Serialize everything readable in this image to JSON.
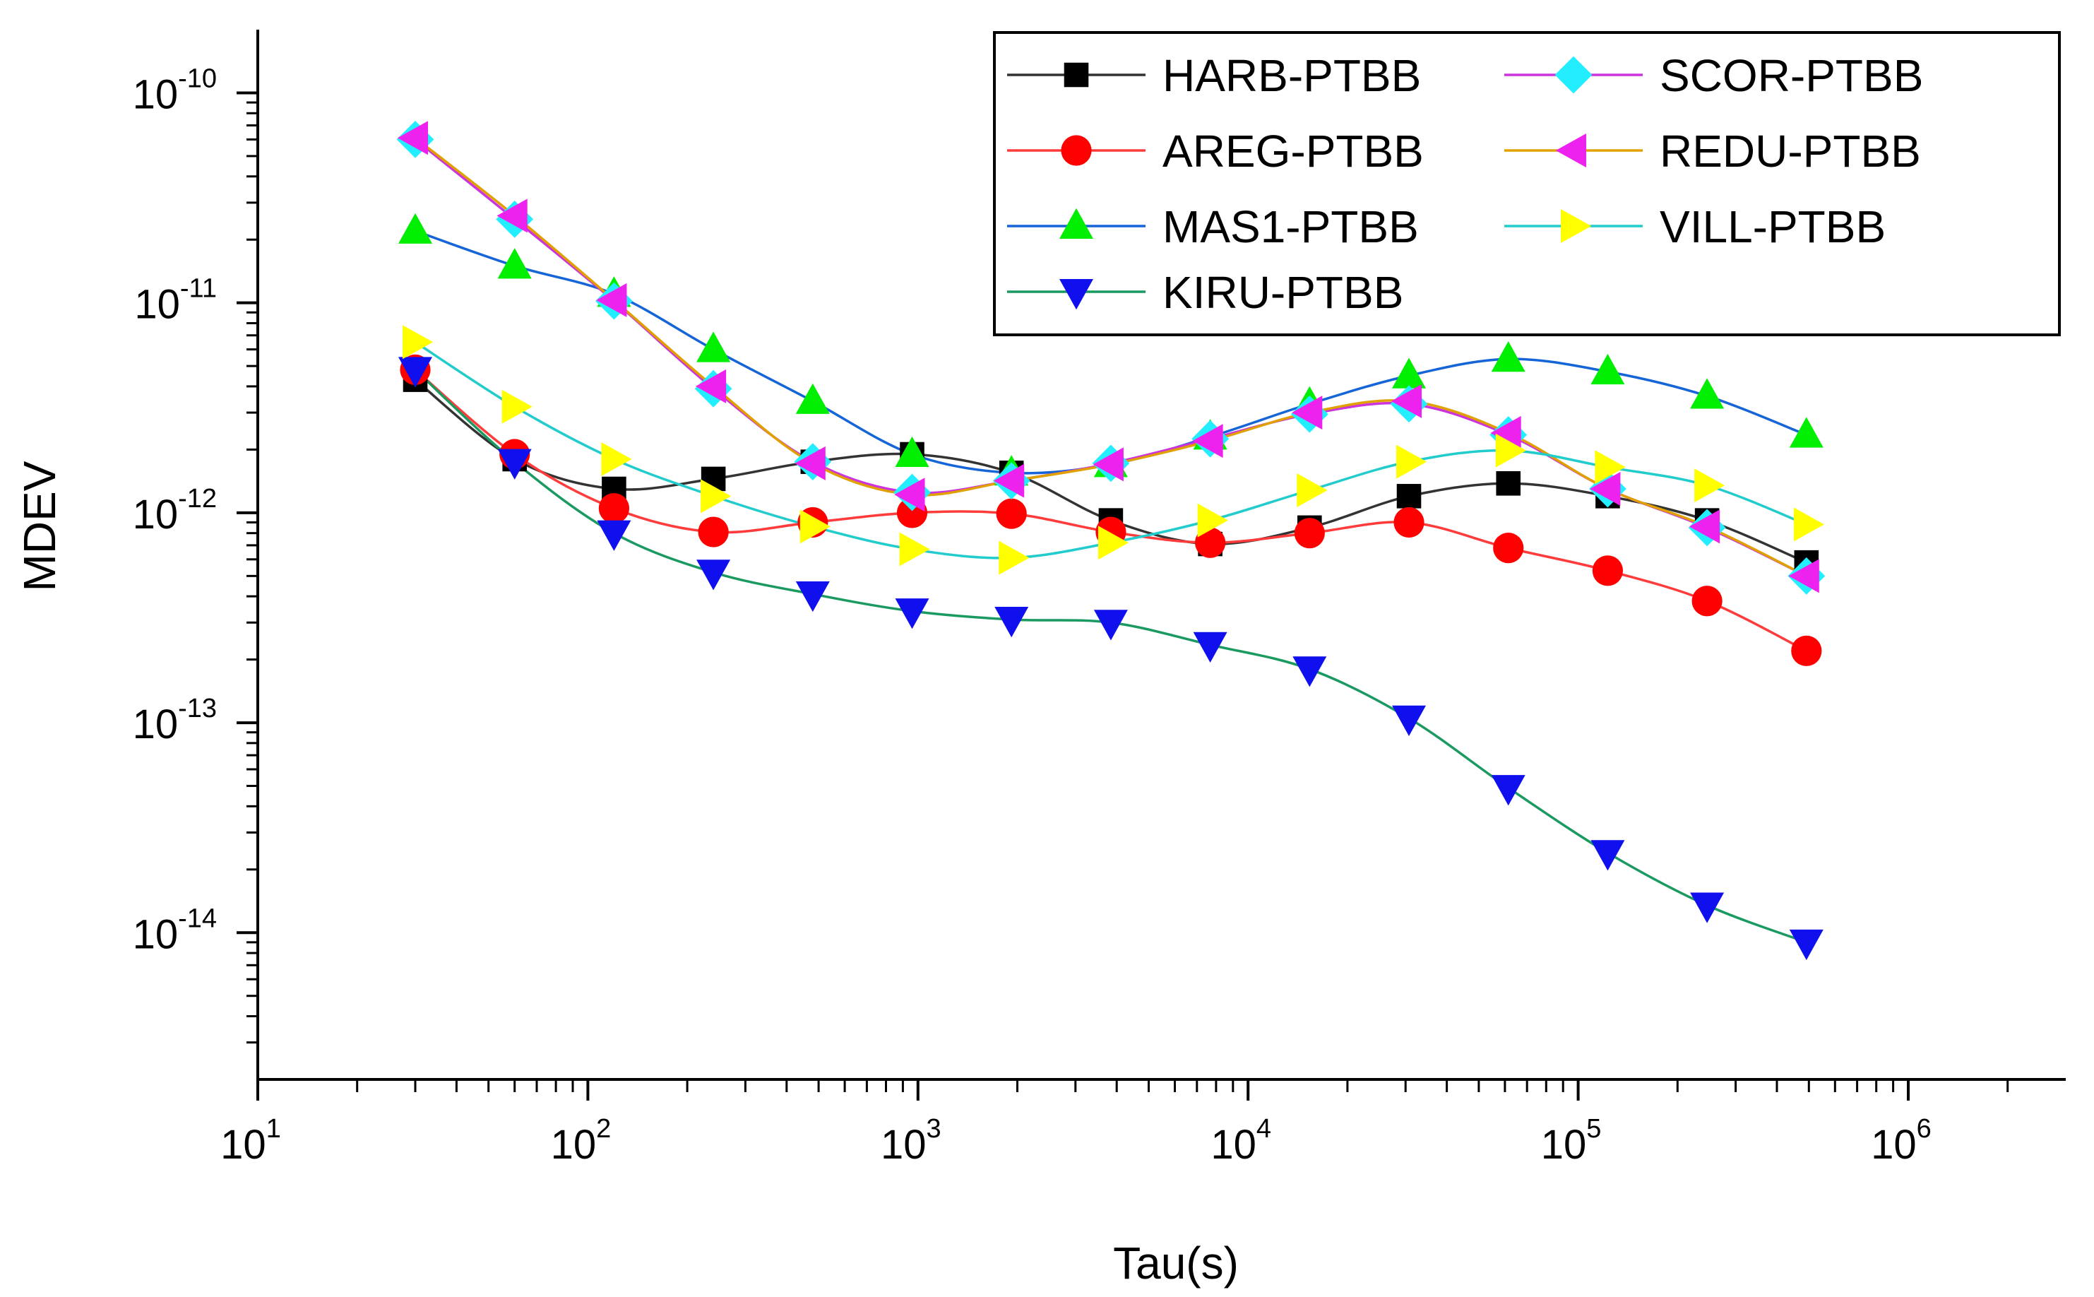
{
  "chart_data": {
    "type": "line",
    "title": "",
    "xlabel": "Tau(s)",
    "ylabel": "MDEV",
    "xscale": "log",
    "yscale": "log",
    "xlim": [
      10,
      3000000
    ],
    "ylim": [
      2e-15,
      2e-10
    ],
    "x_ticks": [
      {
        "value": 10,
        "base": "10",
        "exp": "1"
      },
      {
        "value": 100,
        "base": "10",
        "exp": "2"
      },
      {
        "value": 1000,
        "base": "10",
        "exp": "3"
      },
      {
        "value": 10000,
        "base": "10",
        "exp": "4"
      },
      {
        "value": 100000,
        "base": "10",
        "exp": "5"
      },
      {
        "value": 1000000,
        "base": "10",
        "exp": "6"
      }
    ],
    "y_ticks": [
      {
        "value": 1e-10,
        "base": "10",
        "exp": "-10"
      },
      {
        "value": 1e-11,
        "base": "10",
        "exp": "-11"
      },
      {
        "value": 1e-12,
        "base": "10",
        "exp": "-12"
      },
      {
        "value": 1e-13,
        "base": "10",
        "exp": "-13"
      },
      {
        "value": 1e-14,
        "base": "10",
        "exp": "-14"
      }
    ],
    "grid": false,
    "legend_position": "top-right",
    "x": [
      30,
      60,
      120,
      240,
      480,
      960,
      1920,
      3840,
      7680,
      15360,
      30720,
      61440,
      122880,
      245760,
      491520
    ],
    "series": [
      {
        "name": "HARB-PTBB",
        "color": "#333333",
        "marker_color": "#000000",
        "marker": "square",
        "values": [
          4.3e-12,
          1.8e-12,
          1.3e-12,
          1.45e-12,
          1.75e-12,
          1.9e-12,
          1.55e-12,
          9.2e-13,
          7.1e-13,
          8.5e-13,
          1.2e-12,
          1.38e-12,
          1.2e-12,
          9.2e-13,
          5.8e-13
        ]
      },
      {
        "name": "AREG-PTBB",
        "color": "#ff3b3b",
        "marker_color": "#ff0000",
        "marker": "circle",
        "values": [
          4.8e-12,
          1.9e-12,
          1.05e-12,
          8.1e-13,
          9e-13,
          1e-12,
          9.9e-13,
          8.1e-13,
          7.2e-13,
          8e-13,
          9e-13,
          6.8e-13,
          5.3e-13,
          3.8e-13,
          2.2e-13
        ]
      },
      {
        "name": "MAS1-PTBB",
        "color": "#1565d8",
        "marker_color": "#00ee00",
        "marker": "triangle-up",
        "values": [
          2.2e-11,
          1.5e-11,
          1.1e-11,
          6e-12,
          3.4e-12,
          1.9e-12,
          1.55e-12,
          1.7e-12,
          2.3e-12,
          3.3e-12,
          4.5e-12,
          5.4e-12,
          4.7e-12,
          3.6e-12,
          2.35e-12
        ]
      },
      {
        "name": "KIRU-PTBB",
        "color": "#1a9a60",
        "marker_color": "#1010ee",
        "marker": "triangle-down",
        "values": [
          4.8e-12,
          1.75e-12,
          8e-13,
          5.2e-13,
          4.1e-13,
          3.4e-13,
          3.1e-13,
          3e-13,
          2.35e-13,
          1.8e-13,
          1.05e-13,
          4.9e-14,
          2.4e-14,
          1.35e-14,
          9e-15
        ]
      },
      {
        "name": "SCOR-PTBB",
        "color": "#cc33dd",
        "marker_color": "#22eeff",
        "marker": "diamond",
        "values": [
          6e-11,
          2.5e-11,
          1.02e-11,
          3.9e-12,
          1.75e-12,
          1.25e-12,
          1.42e-12,
          1.72e-12,
          2.25e-12,
          2.95e-12,
          3.3e-12,
          2.35e-12,
          1.3e-12,
          8.5e-13,
          5e-13
        ]
      },
      {
        "name": "REDU-PTBB",
        "color": "#e0a000",
        "marker_color": "#ee22ee",
        "marker": "triangle-left",
        "values": [
          6.1e-11,
          2.6e-11,
          1.03e-11,
          4e-12,
          1.72e-12,
          1.22e-12,
          1.42e-12,
          1.7e-12,
          2.2e-12,
          3e-12,
          3.4e-12,
          2.4e-12,
          1.3e-12,
          8.6e-13,
          5e-13
        ]
      },
      {
        "name": "VILL-PTBB",
        "color": "#22cccc",
        "marker_color": "#ffff00",
        "marker": "triangle-right",
        "values": [
          6.5e-12,
          3.2e-12,
          1.8e-12,
          1.2e-12,
          8.6e-13,
          6.7e-13,
          6.1e-13,
          7.2e-13,
          9.2e-13,
          1.28e-12,
          1.75e-12,
          1.98e-12,
          1.65e-12,
          1.35e-12,
          8.8e-13
        ]
      }
    ],
    "legend_layout": [
      [
        "HARB-PTBB",
        "SCOR-PTBB"
      ],
      [
        "AREG-PTBB",
        "REDU-PTBB"
      ],
      [
        "MAS1-PTBB",
        "VILL-PTBB"
      ],
      [
        "KIRU-PTBB",
        null
      ]
    ]
  }
}
